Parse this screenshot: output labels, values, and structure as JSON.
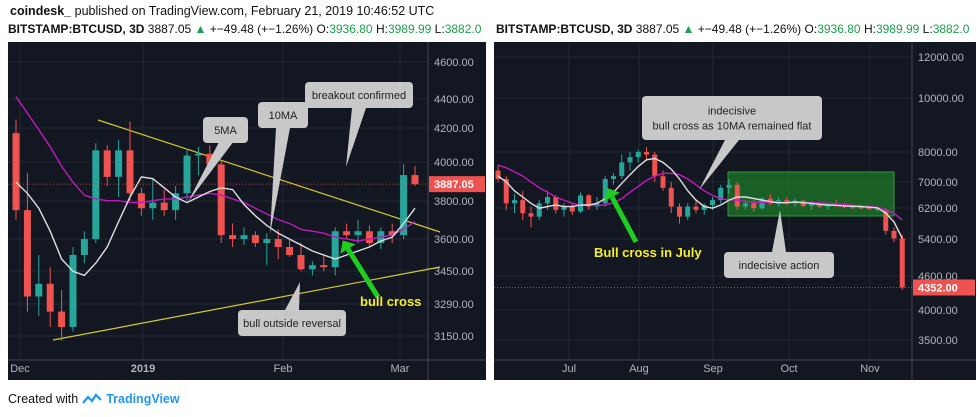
{
  "header": {
    "brand": "coindesk_",
    "published": "published on TradingView.com, February 21, 2019 10:46:52 UTC"
  },
  "symbol_bar": {
    "symbol": "BITSTAMP:BTCUSD, 3D",
    "price": "3887.05",
    "change": "+−49.48 (+−1.26%)",
    "open_label": "O:",
    "open": "3936.80",
    "high_label": "H:",
    "high": "3989.99",
    "low_label": "L:",
    "low": "3882.0"
  },
  "footer": {
    "created_with": "Created with",
    "brand": "TradingView"
  },
  "colors": {
    "up": "#26a69a",
    "down": "#ef5350",
    "ma5": "#e0e0e0",
    "ma10": "#c218c2",
    "trend": "#d4c92f",
    "callout": "#c8c8c8",
    "green_label": "#f5ee2b"
  },
  "chart_data": [
    {
      "type": "candlestick",
      "title": "",
      "x_tick_labels": [
        "Dec",
        "2019",
        "Feb",
        "Mar"
      ],
      "y_tick_labels": [
        "4600.00",
        "4400.00",
        "4200.00",
        "4000.00",
        "3800.00",
        "3600.00",
        "3450.00",
        "3290.00",
        "3150.00"
      ],
      "ylim": [
        3070,
        4700
      ],
      "y_scale": "log",
      "last_price_label": "3887.05",
      "candles": [
        {
          "o": 4180,
          "h": 4260,
          "l": 3700,
          "c": 3750
        },
        {
          "o": 3750,
          "h": 3950,
          "l": 3250,
          "c": 3320
        },
        {
          "o": 3320,
          "h": 3520,
          "l": 3230,
          "c": 3380
        },
        {
          "o": 3380,
          "h": 3460,
          "l": 3180,
          "c": 3250
        },
        {
          "o": 3250,
          "h": 3350,
          "l": 3120,
          "c": 3180
        },
        {
          "o": 3180,
          "h": 3560,
          "l": 3160,
          "c": 3520
        },
        {
          "o": 3520,
          "h": 3640,
          "l": 3480,
          "c": 3600
        },
        {
          "o": 3600,
          "h": 4120,
          "l": 3580,
          "c": 4080
        },
        {
          "o": 4080,
          "h": 4110,
          "l": 3880,
          "c": 3930
        },
        {
          "o": 3930,
          "h": 4140,
          "l": 3820,
          "c": 4080
        },
        {
          "o": 4080,
          "h": 4250,
          "l": 3800,
          "c": 3840
        },
        {
          "o": 3840,
          "h": 3870,
          "l": 3720,
          "c": 3760
        },
        {
          "o": 3760,
          "h": 3920,
          "l": 3700,
          "c": 3790
        },
        {
          "o": 3790,
          "h": 3860,
          "l": 3720,
          "c": 3750
        },
        {
          "o": 3750,
          "h": 3880,
          "l": 3700,
          "c": 3840
        },
        {
          "o": 3840,
          "h": 4090,
          "l": 3800,
          "c": 4050
        },
        {
          "o": 4050,
          "h": 4100,
          "l": 3940,
          "c": 4060
        },
        {
          "o": 4060,
          "h": 4110,
          "l": 3980,
          "c": 4000
        },
        {
          "o": 4000,
          "h": 4020,
          "l": 3580,
          "c": 3620
        },
        {
          "o": 3620,
          "h": 3680,
          "l": 3560,
          "c": 3600
        },
        {
          "o": 3600,
          "h": 3660,
          "l": 3570,
          "c": 3620
        },
        {
          "o": 3620,
          "h": 3640,
          "l": 3560,
          "c": 3580
        },
        {
          "o": 3580,
          "h": 3630,
          "l": 3470,
          "c": 3600
        },
        {
          "o": 3600,
          "h": 3650,
          "l": 3500,
          "c": 3560
        },
        {
          "o": 3560,
          "h": 3600,
          "l": 3510,
          "c": 3520
        },
        {
          "o": 3520,
          "h": 3580,
          "l": 3440,
          "c": 3450
        },
        {
          "o": 3450,
          "h": 3490,
          "l": 3420,
          "c": 3470
        },
        {
          "o": 3470,
          "h": 3520,
          "l": 3440,
          "c": 3460
        },
        {
          "o": 3460,
          "h": 3660,
          "l": 3420,
          "c": 3640
        },
        {
          "o": 3640,
          "h": 3680,
          "l": 3600,
          "c": 3620
        },
        {
          "o": 3620,
          "h": 3700,
          "l": 3580,
          "c": 3640
        },
        {
          "o": 3640,
          "h": 3670,
          "l": 3560,
          "c": 3580
        },
        {
          "o": 3580,
          "h": 3660,
          "l": 3550,
          "c": 3640
        },
        {
          "o": 3640,
          "h": 3680,
          "l": 3580,
          "c": 3620
        },
        {
          "o": 3620,
          "h": 4000,
          "l": 3600,
          "c": 3940
        },
        {
          "o": 3940,
          "h": 3990,
          "l": 3880,
          "c": 3890
        }
      ],
      "ma5": [
        3900,
        3840,
        3760,
        3640,
        3500,
        3440,
        3420,
        3480,
        3560,
        3690,
        3820,
        3930,
        3920,
        3870,
        3820,
        3790,
        3820,
        3850,
        3870,
        3860,
        3780,
        3720,
        3670,
        3630,
        3600,
        3570,
        3540,
        3520,
        3500,
        3520,
        3540,
        3560,
        3590,
        3610,
        3680,
        3760
      ],
      "ma10": [
        4400,
        4300,
        4200,
        4100,
        3990,
        3900,
        3830,
        3810,
        3800,
        3800,
        3790,
        3790,
        3800,
        3810,
        3810,
        3820,
        3830,
        3840,
        3830,
        3810,
        3790,
        3760,
        3730,
        3700,
        3680,
        3650,
        3640,
        3630,
        3610,
        3600,
        3590,
        3600,
        3610,
        3620,
        3650,
        3690
      ],
      "annotations": [
        {
          "name": "ma5-callout",
          "text": "5MA"
        },
        {
          "name": "ma10-callout",
          "text": "10MA"
        },
        {
          "name": "breakout-callout",
          "text": "breakout confirmed"
        },
        {
          "name": "reversal-callout",
          "text": "bull outside reversal"
        },
        {
          "name": "bull-cross-label",
          "text": "bull cross"
        }
      ]
    },
    {
      "type": "candlestick",
      "title": "",
      "x_tick_labels": [
        "Jul",
        "Aug",
        "Sep",
        "Oct",
        "Nov"
      ],
      "y_tick_labels": [
        "12000.00",
        "10000.00",
        "8000.00",
        "7000.00",
        "6200.00",
        "5400.00",
        "4600.00",
        "4000.00",
        "3500.00"
      ],
      "ylim": [
        3200,
        13500
      ],
      "y_scale": "log",
      "last_price_label": "4352.00",
      "candles": [
        {
          "o": 7600,
          "h": 7800,
          "l": 7200,
          "c": 7300
        },
        {
          "o": 7300,
          "h": 7400,
          "l": 6300,
          "c": 6500
        },
        {
          "o": 6500,
          "h": 6800,
          "l": 6200,
          "c": 6600
        },
        {
          "o": 6600,
          "h": 6900,
          "l": 6000,
          "c": 6200
        },
        {
          "o": 6200,
          "h": 6400,
          "l": 5800,
          "c": 6100
        },
        {
          "o": 6100,
          "h": 6600,
          "l": 6000,
          "c": 6500
        },
        {
          "o": 6500,
          "h": 6900,
          "l": 6300,
          "c": 6700
        },
        {
          "o": 6700,
          "h": 6750,
          "l": 6200,
          "c": 6300
        },
        {
          "o": 6300,
          "h": 6500,
          "l": 6100,
          "c": 6400
        },
        {
          "o": 6400,
          "h": 6500,
          "l": 6150,
          "c": 6250
        },
        {
          "o": 6250,
          "h": 6850,
          "l": 6200,
          "c": 6750
        },
        {
          "o": 6750,
          "h": 6800,
          "l": 6300,
          "c": 6400
        },
        {
          "o": 6400,
          "h": 6700,
          "l": 6300,
          "c": 6500
        },
        {
          "o": 6500,
          "h": 7400,
          "l": 6400,
          "c": 7300
        },
        {
          "o": 7300,
          "h": 7500,
          "l": 7100,
          "c": 7400
        },
        {
          "o": 7400,
          "h": 8200,
          "l": 7300,
          "c": 7900
        },
        {
          "o": 7900,
          "h": 8300,
          "l": 7600,
          "c": 8100
        },
        {
          "o": 8100,
          "h": 8400,
          "l": 7900,
          "c": 8300
        },
        {
          "o": 8300,
          "h": 8500,
          "l": 8000,
          "c": 8200
        },
        {
          "o": 8200,
          "h": 8300,
          "l": 7200,
          "c": 7400
        },
        {
          "o": 7400,
          "h": 7600,
          "l": 6900,
          "c": 7000
        },
        {
          "o": 7000,
          "h": 7200,
          "l": 6200,
          "c": 6400
        },
        {
          "o": 6400,
          "h": 6500,
          "l": 5900,
          "c": 6100
        },
        {
          "o": 6100,
          "h": 6500,
          "l": 6000,
          "c": 6400
        },
        {
          "o": 6400,
          "h": 6600,
          "l": 6200,
          "c": 6300
        },
        {
          "o": 6300,
          "h": 6500,
          "l": 6150,
          "c": 6450
        },
        {
          "o": 6450,
          "h": 6700,
          "l": 6300,
          "c": 6600
        },
        {
          "o": 6600,
          "h": 7100,
          "l": 6500,
          "c": 7000
        },
        {
          "o": 7000,
          "h": 7300,
          "l": 6800,
          "c": 7100
        },
        {
          "o": 7100,
          "h": 7200,
          "l": 6300,
          "c": 6400
        },
        {
          "o": 6400,
          "h": 6600,
          "l": 6300,
          "c": 6500
        },
        {
          "o": 6500,
          "h": 6600,
          "l": 6250,
          "c": 6350
        },
        {
          "o": 6350,
          "h": 6700,
          "l": 6300,
          "c": 6650
        },
        {
          "o": 6650,
          "h": 6800,
          "l": 6450,
          "c": 6500
        },
        {
          "o": 6500,
          "h": 6700,
          "l": 6400,
          "c": 6600
        },
        {
          "o": 6600,
          "h": 6700,
          "l": 6450,
          "c": 6500
        },
        {
          "o": 6500,
          "h": 6650,
          "l": 6400,
          "c": 6580
        },
        {
          "o": 6580,
          "h": 6620,
          "l": 6380,
          "c": 6420
        },
        {
          "o": 6420,
          "h": 6550,
          "l": 6300,
          "c": 6480
        },
        {
          "o": 6480,
          "h": 6520,
          "l": 6350,
          "c": 6400
        },
        {
          "o": 6400,
          "h": 6500,
          "l": 6300,
          "c": 6450
        },
        {
          "o": 6450,
          "h": 6600,
          "l": 6380,
          "c": 6420
        },
        {
          "o": 6420,
          "h": 6520,
          "l": 6350,
          "c": 6400
        },
        {
          "o": 6400,
          "h": 6480,
          "l": 6320,
          "c": 6380
        },
        {
          "o": 6380,
          "h": 6460,
          "l": 6300,
          "c": 6350
        },
        {
          "o": 6350,
          "h": 6420,
          "l": 6300,
          "c": 6330
        },
        {
          "o": 6330,
          "h": 6400,
          "l": 6250,
          "c": 6300
        },
        {
          "o": 6300,
          "h": 6350,
          "l": 5600,
          "c": 5700
        },
        {
          "o": 5700,
          "h": 5800,
          "l": 5400,
          "c": 5500
        },
        {
          "o": 5500,
          "h": 5600,
          "l": 4300,
          "c": 4352
        }
      ],
      "ma5": [
        7400,
        7200,
        6900,
        6700,
        6500,
        6350,
        6400,
        6450,
        6400,
        6400,
        6450,
        6450,
        6500,
        6650,
        6850,
        7150,
        7450,
        7750,
        8000,
        8050,
        7900,
        7650,
        7300,
        6900,
        6600,
        6400,
        6350,
        6450,
        6600,
        6700,
        6700,
        6650,
        6600,
        6550,
        6520,
        6520,
        6540,
        6520,
        6500,
        6470,
        6450,
        6440,
        6420,
        6410,
        6400,
        6380,
        6360,
        6200,
        5950,
        5500
      ],
      "ma10": [
        7800,
        7700,
        7550,
        7400,
        7200,
        7000,
        6850,
        6700,
        6600,
        6500,
        6450,
        6450,
        6430,
        6450,
        6520,
        6650,
        6850,
        7050,
        7250,
        7400,
        7500,
        7500,
        7450,
        7300,
        7100,
        6900,
        6750,
        6650,
        6600,
        6600,
        6560,
        6540,
        6530,
        6540,
        6540,
        6530,
        6530,
        6530,
        6520,
        6510,
        6500,
        6480,
        6460,
        6440,
        6420,
        6400,
        6380,
        6300,
        6200,
        6000
      ],
      "annotations": [
        {
          "name": "indecisive-cross-callout",
          "text": "indecisive\nbull cross  as 10MA remained flat"
        },
        {
          "name": "indecisive-action-callout",
          "text": "indecisive action"
        },
        {
          "name": "bull-cross-july-label",
          "text": "Bull cross in July"
        }
      ]
    }
  ]
}
